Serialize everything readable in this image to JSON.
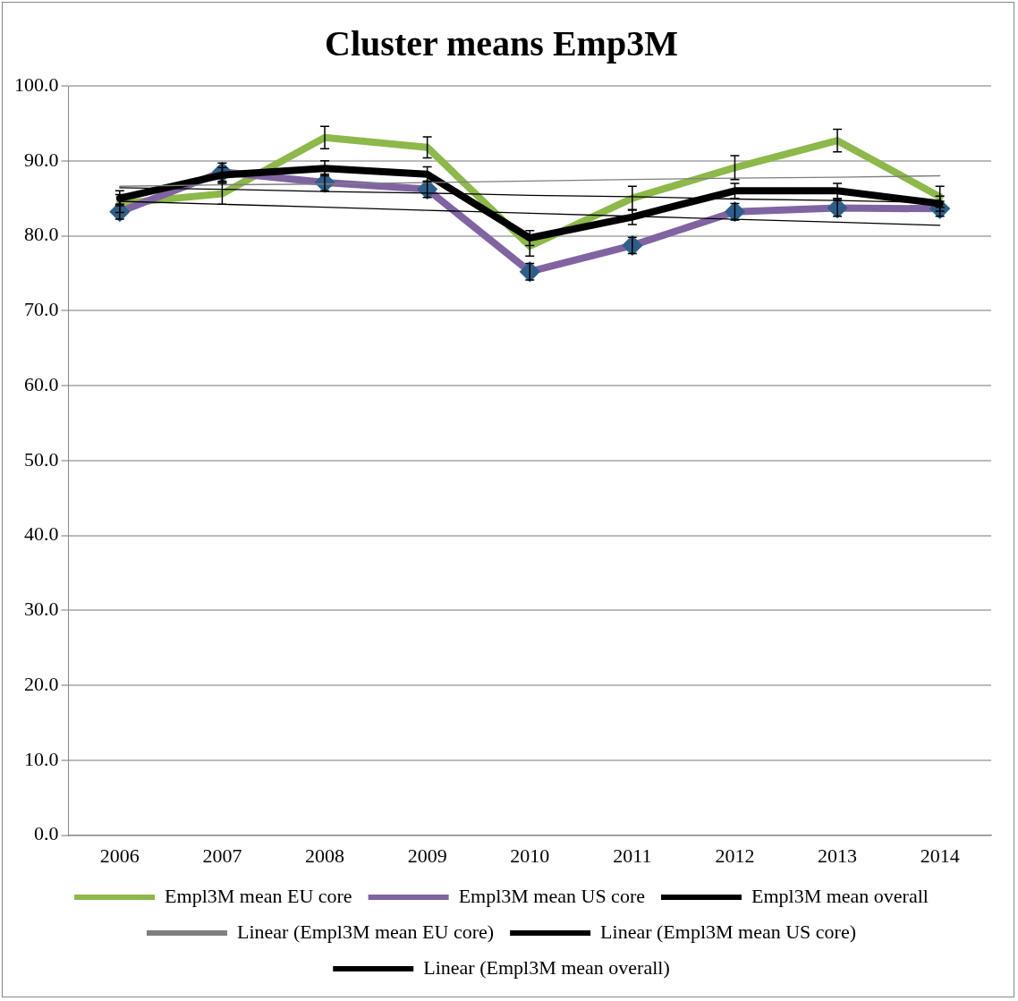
{
  "chart_data": {
    "type": "line",
    "title": "Cluster means Emp3M",
    "categories": [
      "2006",
      "2007",
      "2008",
      "2009",
      "2010",
      "2011",
      "2012",
      "2013",
      "2014"
    ],
    "ylim": [
      0,
      100
    ],
    "yticks": [
      {
        "value": 0,
        "label": "0.0"
      },
      {
        "value": 10,
        "label": "10.0"
      },
      {
        "value": 20,
        "label": "20.0"
      },
      {
        "value": 30,
        "label": "30.0"
      },
      {
        "value": 40,
        "label": "40.0"
      },
      {
        "value": 50,
        "label": "50.0"
      },
      {
        "value": 60,
        "label": "60.0"
      },
      {
        "value": 70,
        "label": "70.0"
      },
      {
        "value": 80,
        "label": "80.0"
      },
      {
        "value": 90,
        "label": "90.0"
      },
      {
        "value": 100,
        "label": "100.0"
      }
    ],
    "grid": "y",
    "legend": "bottom",
    "line_style": "solid",
    "series": [
      {
        "name": "Empl3M mean EU core",
        "color": "#8db84a",
        "marker": "none",
        "values": [
          84.3,
          85.6,
          93.1,
          91.8,
          78.6,
          85.0,
          89.1,
          92.7,
          85.2
        ],
        "errors": [
          1.2,
          1.4,
          1.5,
          1.4,
          1.3,
          1.6,
          1.6,
          1.5,
          1.4
        ]
      },
      {
        "name": "Empl3M mean US core",
        "color": "#8064a2",
        "marker": "diamond",
        "values": [
          83.2,
          88.5,
          87.1,
          86.2,
          75.2,
          78.7,
          83.2,
          83.7,
          83.6
        ],
        "errors": [
          1.0,
          1.2,
          1.1,
          1.1,
          1.1,
          1.1,
          1.1,
          1.1,
          1.0
        ]
      },
      {
        "name": "Empl3M mean overall",
        "color": "#000000",
        "marker": "none",
        "values": [
          85.0,
          88.1,
          89.0,
          88.2,
          79.7,
          82.5,
          86.0,
          86.0,
          84.3
        ],
        "errors": [
          1.0,
          1.0,
          1.0,
          1.0,
          1.0,
          1.0,
          1.0,
          1.0,
          1.0
        ]
      },
      {
        "name": "Linear (Empl3M mean EU core)",
        "type": "line",
        "color": "#7f7f7f",
        "marker": "none",
        "values": [
          86.6,
          86.8,
          86.9,
          87.1,
          87.3,
          87.5,
          87.7,
          87.8,
          88.0
        ]
      },
      {
        "name": "Linear (Empl3M mean US core)",
        "type": "line",
        "color": "#000000",
        "marker": "none",
        "values": [
          84.6,
          84.2,
          83.8,
          83.4,
          83.0,
          82.6,
          82.2,
          81.8,
          81.4
        ]
      },
      {
        "name": "Linear (Empl3M mean overall)",
        "type": "line",
        "color": "#000000",
        "marker": "none",
        "values": [
          86.4,
          86.2,
          85.9,
          85.7,
          85.4,
          85.2,
          84.9,
          84.7,
          84.4
        ]
      }
    ]
  }
}
